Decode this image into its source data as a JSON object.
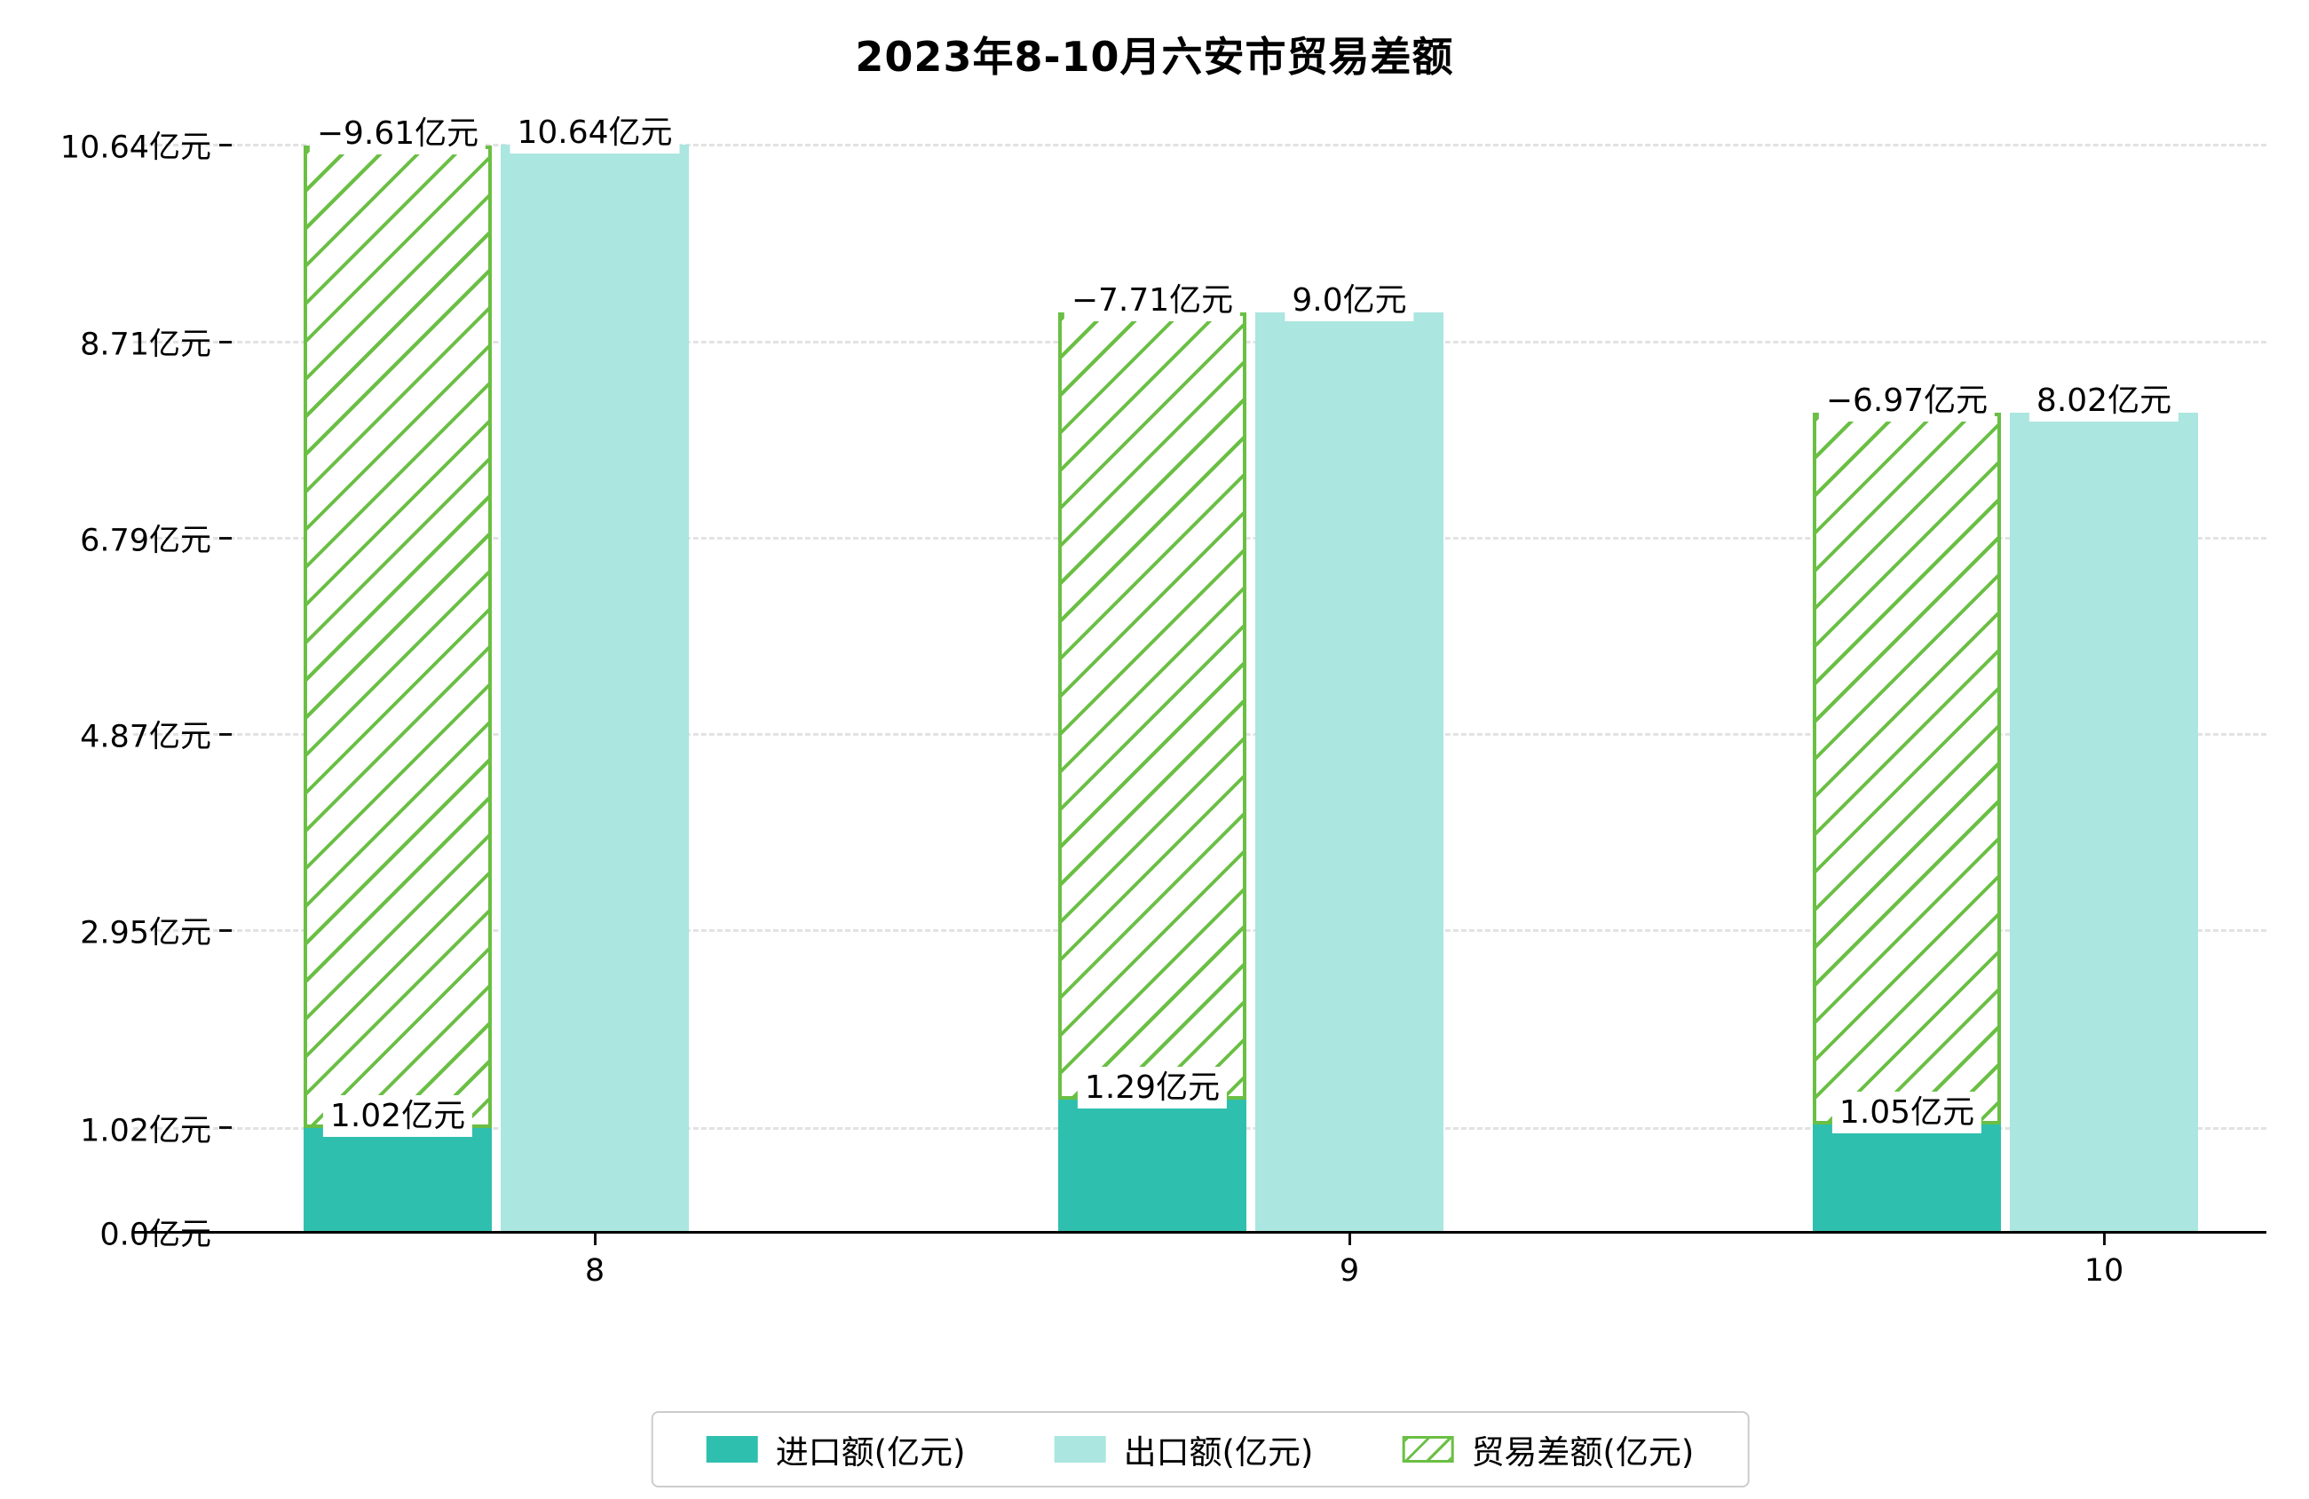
{
  "title": "2023年8-10月六安市贸易差额",
  "chart_data": {
    "type": "bar",
    "categories": [
      "8",
      "9",
      "10"
    ],
    "series": [
      {
        "name": "进口额(亿元)",
        "role": "import",
        "values": [
          1.02,
          1.29,
          1.05
        ],
        "labels": [
          "1.02亿元",
          "1.29亿元",
          "1.05亿元"
        ],
        "color": "#2fbfae",
        "style": "solid"
      },
      {
        "name": "出口额(亿元)",
        "role": "export",
        "values": [
          10.64,
          9.0,
          8.02
        ],
        "labels": [
          "10.64亿元",
          "9.0亿元",
          "8.02亿元"
        ],
        "color": "#abe6e0",
        "style": "solid"
      },
      {
        "name": "贸易差额(亿元)",
        "role": "balance",
        "values": [
          -9.61,
          -7.71,
          -6.97
        ],
        "labels": [
          "−9.61亿元",
          "−7.71亿元",
          "−6.97亿元"
        ],
        "color": "#6abf44",
        "style": "hatch",
        "note": "drawn stacked on top of import bar, reaching export value"
      }
    ],
    "y_ticks": [
      {
        "value": 0.0,
        "label": "0.0亿元"
      },
      {
        "value": 1.02,
        "label": "1.02亿元"
      },
      {
        "value": 2.95,
        "label": "2.95亿元"
      },
      {
        "value": 4.87,
        "label": "4.87亿元"
      },
      {
        "value": 6.79,
        "label": "6.79亿元"
      },
      {
        "value": 8.71,
        "label": "8.71亿元"
      },
      {
        "value": 10.64,
        "label": "10.64亿元"
      }
    ],
    "ylim": [
      0,
      10.64
    ],
    "unit": "亿元",
    "grid": true,
    "legend_position": "bottom"
  }
}
